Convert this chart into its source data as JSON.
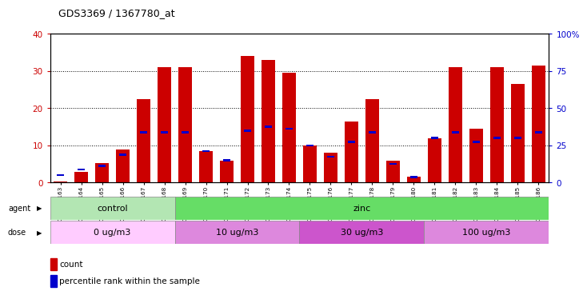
{
  "title": "GDS3369 / 1367780_at",
  "samples": [
    "GSM280163",
    "GSM280164",
    "GSM280165",
    "GSM280166",
    "GSM280167",
    "GSM280168",
    "GSM280169",
    "GSM280170",
    "GSM280171",
    "GSM280172",
    "GSM280173",
    "GSM280174",
    "GSM280175",
    "GSM280176",
    "GSM280177",
    "GSM280178",
    "GSM280179",
    "GSM280180",
    "GSM280181",
    "GSM280182",
    "GSM280183",
    "GSM280184",
    "GSM280185",
    "GSM280186"
  ],
  "count_values": [
    0.3,
    2.8,
    5.2,
    9.0,
    22.5,
    31.0,
    31.0,
    8.5,
    6.0,
    34.0,
    33.0,
    29.5,
    10.0,
    8.0,
    16.5,
    22.5,
    6.0,
    1.5,
    12.0,
    31.0,
    14.5,
    31.0,
    26.5,
    31.5
  ],
  "percentile_values": [
    2.0,
    3.5,
    4.5,
    7.5,
    13.5,
    13.5,
    13.5,
    8.5,
    6.0,
    14.0,
    15.0,
    14.5,
    10.0,
    7.0,
    11.0,
    13.5,
    5.0,
    1.5,
    12.0,
    13.5,
    11.0,
    12.0,
    12.0,
    13.5
  ],
  "bar_color": "#cc0000",
  "percentile_color": "#0000cc",
  "ylim_left": [
    0,
    40
  ],
  "ylim_right": [
    0,
    100
  ],
  "yticks_left": [
    0,
    10,
    20,
    30,
    40
  ],
  "yticks_right": [
    0,
    25,
    50,
    75,
    100
  ],
  "ytick_labels_right": [
    "0",
    "25",
    "50",
    "75",
    "100%"
  ],
  "agent_groups": [
    {
      "label": "control",
      "start": 0,
      "end": 6,
      "color": "#b3e6b3"
    },
    {
      "label": "zinc",
      "start": 6,
      "end": 24,
      "color": "#66dd66"
    }
  ],
  "dose_groups": [
    {
      "label": "0 ug/m3",
      "start": 0,
      "end": 6,
      "color": "#ffccff"
    },
    {
      "label": "10 ug/m3",
      "start": 6,
      "end": 12,
      "color": "#dd88dd"
    },
    {
      "label": "30 ug/m3",
      "start": 12,
      "end": 18,
      "color": "#cc55cc"
    },
    {
      "label": "100 ug/m3",
      "start": 18,
      "end": 24,
      "color": "#dd88dd"
    }
  ],
  "legend_count_label": "count",
  "legend_percentile_label": "percentile rank within the sample"
}
